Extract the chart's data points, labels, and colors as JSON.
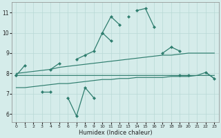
{
  "xlabel": "Humidex (Indice chaleur)",
  "x": [
    0,
    1,
    2,
    3,
    4,
    5,
    6,
    7,
    8,
    9,
    10,
    11,
    12,
    13,
    14,
    15,
    16,
    17,
    18,
    19,
    20,
    21,
    22,
    23
  ],
  "line_top": [
    7.9,
    8.4,
    null,
    null,
    null,
    null,
    null,
    null,
    null,
    null,
    10.0,
    10.8,
    10.4,
    null,
    11.1,
    11.2,
    10.3,
    null,
    null,
    null,
    null,
    null,
    null,
    null
  ],
  "line_mid_jagged": [
    null,
    null,
    null,
    null,
    8.2,
    8.5,
    null,
    8.7,
    8.9,
    9.1,
    10.0,
    9.6,
    null,
    10.8,
    null,
    null,
    null,
    9.0,
    9.3,
    9.1,
    null,
    null,
    null,
    null
  ],
  "line_low_jagged": [
    7.9,
    null,
    null,
    7.1,
    7.1,
    null,
    6.8,
    5.9,
    7.3,
    6.8,
    null,
    null,
    null,
    null,
    null,
    null,
    null,
    null,
    null,
    null,
    null,
    null,
    null,
    null
  ],
  "line_flat_top": [
    7.9,
    7.9,
    7.9,
    7.9,
    7.9,
    7.9,
    7.9,
    7.9,
    7.9,
    7.9,
    7.9,
    7.9,
    7.9,
    7.9,
    7.9,
    7.9,
    7.9,
    7.9,
    7.9,
    7.9,
    7.9,
    7.9,
    8.05,
    7.75
  ],
  "line_rising_mid": [
    8.0,
    8.05,
    8.1,
    8.15,
    8.2,
    8.3,
    8.35,
    8.4,
    8.45,
    8.5,
    8.55,
    8.6,
    8.65,
    8.7,
    8.75,
    8.8,
    8.85,
    8.9,
    8.9,
    8.95,
    9.0,
    9.0,
    9.0,
    9.0
  ],
  "line_rising_low": [
    7.3,
    7.3,
    7.35,
    7.4,
    7.45,
    7.5,
    7.5,
    7.55,
    7.6,
    7.65,
    7.7,
    7.7,
    7.75,
    7.75,
    7.8,
    7.8,
    7.8,
    7.8,
    7.85,
    7.85,
    7.85,
    7.9,
    7.9,
    7.9
  ],
  "line_right_jagged": [
    null,
    null,
    null,
    null,
    null,
    null,
    null,
    null,
    null,
    null,
    null,
    null,
    null,
    null,
    null,
    null,
    null,
    null,
    null,
    7.9,
    7.9,
    null,
    8.05,
    7.75
  ],
  "color": "#2e7d6e",
  "bg_color": "#d5ecea",
  "grid_color": "#b8d8d5",
  "ylim": [
    5.6,
    11.5
  ],
  "xlim": [
    -0.5,
    23.5
  ],
  "yticks": [
    6,
    7,
    8,
    9,
    10,
    11
  ],
  "xticks": [
    0,
    1,
    2,
    3,
    4,
    5,
    6,
    7,
    8,
    9,
    10,
    11,
    12,
    13,
    14,
    15,
    16,
    17,
    18,
    19,
    20,
    21,
    22,
    23
  ]
}
